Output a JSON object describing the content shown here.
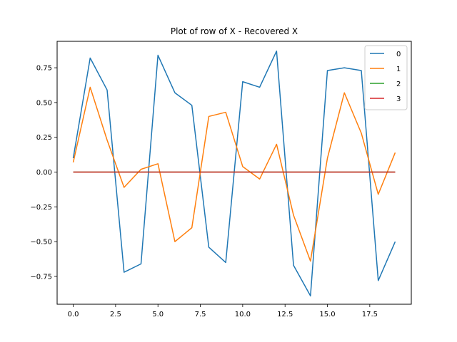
{
  "chart_data": {
    "type": "line",
    "title": "Plot of row of X - Recovered X",
    "xlabel": "",
    "ylabel": "",
    "xlim": [
      -0.95,
      19.95
    ],
    "ylim": [
      -0.95,
      0.94
    ],
    "x_ticks": [
      0.0,
      2.5,
      5.0,
      7.5,
      10.0,
      12.5,
      15.0,
      17.5
    ],
    "x_tick_labels": [
      "0.0",
      "2.5",
      "5.0",
      "7.5",
      "10.0",
      "12.5",
      "15.0",
      "17.5"
    ],
    "y_ticks": [
      0.75,
      0.5,
      0.25,
      0.0,
      -0.25,
      -0.5,
      -0.75
    ],
    "y_tick_labels": [
      "0.75",
      "0.50",
      "0.25",
      "0.00",
      "−0.25",
      "−0.50",
      "−0.75"
    ],
    "grid": false,
    "legend_position": "top-right",
    "x": [
      0,
      1,
      2,
      3,
      4,
      5,
      6,
      7,
      8,
      9,
      10,
      11,
      12,
      13,
      14,
      15,
      16,
      17,
      18,
      19
    ],
    "series": [
      {
        "name": "0",
        "color": "#1f77b4",
        "values": [
          0.1,
          0.82,
          0.59,
          -0.72,
          -0.66,
          0.84,
          0.57,
          0.48,
          -0.54,
          -0.65,
          0.65,
          0.61,
          0.87,
          -0.67,
          -0.89,
          0.73,
          0.75,
          0.73,
          -0.78,
          -0.5
        ]
      },
      {
        "name": "1",
        "color": "#ff7f0e",
        "values": [
          0.07,
          0.61,
          0.23,
          -0.11,
          0.02,
          0.06,
          -0.5,
          -0.4,
          0.4,
          0.43,
          0.04,
          -0.05,
          0.2,
          -0.31,
          -0.64,
          0.1,
          0.57,
          0.28,
          -0.16,
          0.14
        ]
      },
      {
        "name": "2",
        "color": "#2ca02c",
        "values": [
          0,
          0,
          0,
          0,
          0,
          0,
          0,
          0,
          0,
          0,
          0,
          0,
          0,
          0,
          0,
          0,
          0,
          0,
          0,
          0
        ]
      },
      {
        "name": "3",
        "color": "#d62728",
        "values": [
          0,
          0,
          0,
          0,
          0,
          0,
          0,
          0,
          0,
          0,
          0,
          0,
          0,
          0,
          0,
          0,
          0,
          0,
          0,
          0
        ]
      }
    ]
  }
}
